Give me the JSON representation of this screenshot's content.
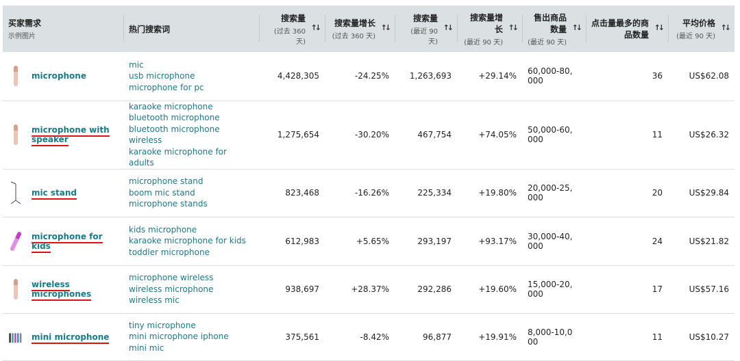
{
  "headers": [
    {
      "title": "买家需求",
      "sub": "示例图片"
    },
    {
      "title": "热门搜索词",
      "sub": ""
    },
    {
      "title": "搜索量",
      "sub": "(过去 360 天)"
    },
    {
      "title": "搜索量增长",
      "sub": "(过去 360 天)"
    },
    {
      "title": "搜索量",
      "sub": "(最近 90 天)"
    },
    {
      "title": "搜索量增长",
      "sub": "(最近 90 天)"
    },
    {
      "title": "售出商品数量",
      "sub": "(最近 90 天)"
    },
    {
      "title": "点击量最多的商品数量",
      "sub": ""
    },
    {
      "title": "平均价格",
      "sub": "(最近 90 天)"
    }
  ],
  "sort_icon": "↑↓",
  "rows": [
    {
      "need": "microphone",
      "underlined": false,
      "image": "microphone-image",
      "terms": [
        "mic",
        "usb microphone",
        "microphone for pc"
      ],
      "sv360": "4,428,305",
      "g360": "-24.25%",
      "sv90": "1,263,693",
      "g90": "+29.14%",
      "sold": "60,000-80,000",
      "clicked": "36",
      "price": "US$62.08"
    },
    {
      "need": "microphone with speaker",
      "underlined": true,
      "image": "microphone-image",
      "terms": [
        "karaoke microphone",
        "bluetooth microphone",
        "bluetooth microphone wireless",
        "karaoke microphone for adults"
      ],
      "sv360": "1,275,654",
      "g360": "-30.20%",
      "sv90": "467,754",
      "g90": "+74.05%",
      "sold": "50,000-60,000",
      "clicked": "11",
      "price": "US$26.32"
    },
    {
      "need": "mic stand",
      "underlined": true,
      "image": "mic-stand-image",
      "terms": [
        "microphone stand",
        "boom mic stand",
        "microphone stands"
      ],
      "sv360": "823,468",
      "g360": "-16.26%",
      "sv90": "225,334",
      "g90": "+19.80%",
      "sold": "20,000-25,000",
      "clicked": "20",
      "price": "US$29.84"
    },
    {
      "need": "microphone for kids",
      "underlined": true,
      "image": "kids-microphone-image",
      "terms": [
        "kids microphone",
        "karaoke microphone for kids",
        "toddler microphone"
      ],
      "sv360": "612,983",
      "g360": "+5.65%",
      "sv90": "293,197",
      "g90": "+93.17%",
      "sold": "30,000-40,000",
      "clicked": "24",
      "price": "US$21.82"
    },
    {
      "need": "wireless microphones",
      "underlined": true,
      "image": "microphone-image",
      "terms": [
        "microphone wireless",
        "wireless microphone",
        "wireless mic"
      ],
      "sv360": "938,697",
      "g360": "+28.37%",
      "sv90": "292,286",
      "g90": "+19.60%",
      "sold": "15,000-20,000",
      "clicked": "17",
      "price": "US$57.16"
    },
    {
      "need": "mini microphone",
      "underlined": true,
      "image": "mini-microphones-image",
      "terms": [
        "tiny microphone",
        "mini microphone iphone",
        "mini mic"
      ],
      "sv360": "375,561",
      "g360": "-8.42%",
      "sv90": "96,877",
      "g90": "+19.91%",
      "sold": "8,000-10,000",
      "clicked": "11",
      "price": "US$10.27"
    }
  ],
  "colors": {
    "header_bg": "#dbe0e2",
    "link": "#1a7a8a",
    "underline": "#e01010"
  }
}
